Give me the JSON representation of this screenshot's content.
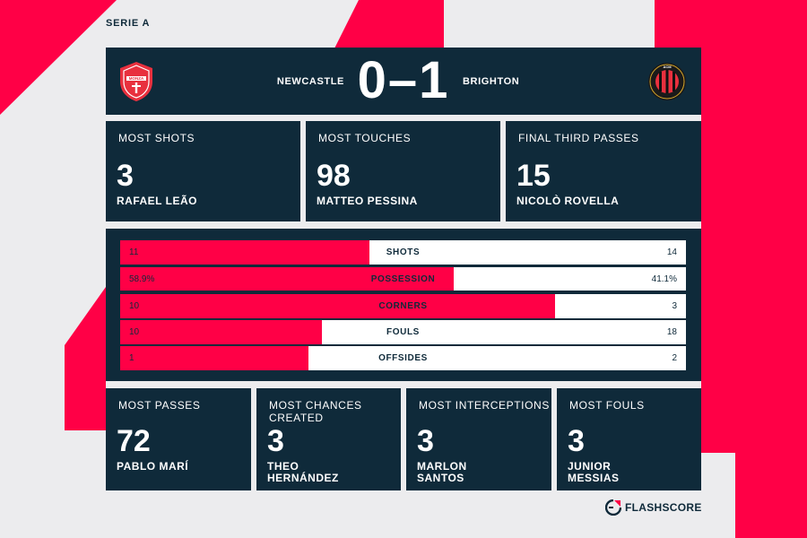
{
  "league": "SERIE A",
  "match": {
    "home_team": "NEWCASTLE",
    "away_team": "BRIGHTON",
    "score": "0–1",
    "home_crest_icon": "monza-crest-icon",
    "home_crest_text": "MONZA",
    "away_crest_icon": "ac-milan-crest-icon",
    "away_crest_text": "ACM"
  },
  "top_stats": [
    {
      "title": "MOST SHOTS",
      "value": "3",
      "player": "RAFAEL LEÃO"
    },
    {
      "title": "MOST TOUCHES",
      "value": "98",
      "player": "MATTEO PESSINA"
    },
    {
      "title": "FINAL THIRD PASSES",
      "value": "15",
      "player": "NICOLÒ ROVELLA"
    }
  ],
  "comparison": [
    {
      "label": "SHOTS",
      "left": "11",
      "right": "14",
      "left_share": 0.44
    },
    {
      "label": "POSSESSION",
      "left": "58.9%",
      "right": "41.1%",
      "left_share": 0.589
    },
    {
      "label": "CORNERS",
      "left": "10",
      "right": "3",
      "left_share": 0.769
    },
    {
      "label": "FOULS",
      "left": "10",
      "right": "18",
      "left_share": 0.357
    },
    {
      "label": "OFFSIDES",
      "left": "1",
      "right": "2",
      "left_share": 0.333
    }
  ],
  "bottom_stats": [
    {
      "title": "MOST PASSES",
      "value": "72",
      "player": "PABLO MARÍ"
    },
    {
      "title": "MOST CHANCES CREATED",
      "value": "3",
      "player": "THEO HERNÁNDEZ"
    },
    {
      "title": "MOST INTERCEPTIONS",
      "value": "3",
      "player": "MARLON SANTOS"
    },
    {
      "title": "MOST FOULS",
      "value": "3",
      "player": "JUNIOR MESSIAS"
    }
  ],
  "brand": {
    "name": "FLASHSCORE",
    "icon": "flashscore-logo-icon"
  },
  "colors": {
    "accent": "#ff0046",
    "panel": "#0f2a3a",
    "background": "#ececee"
  }
}
